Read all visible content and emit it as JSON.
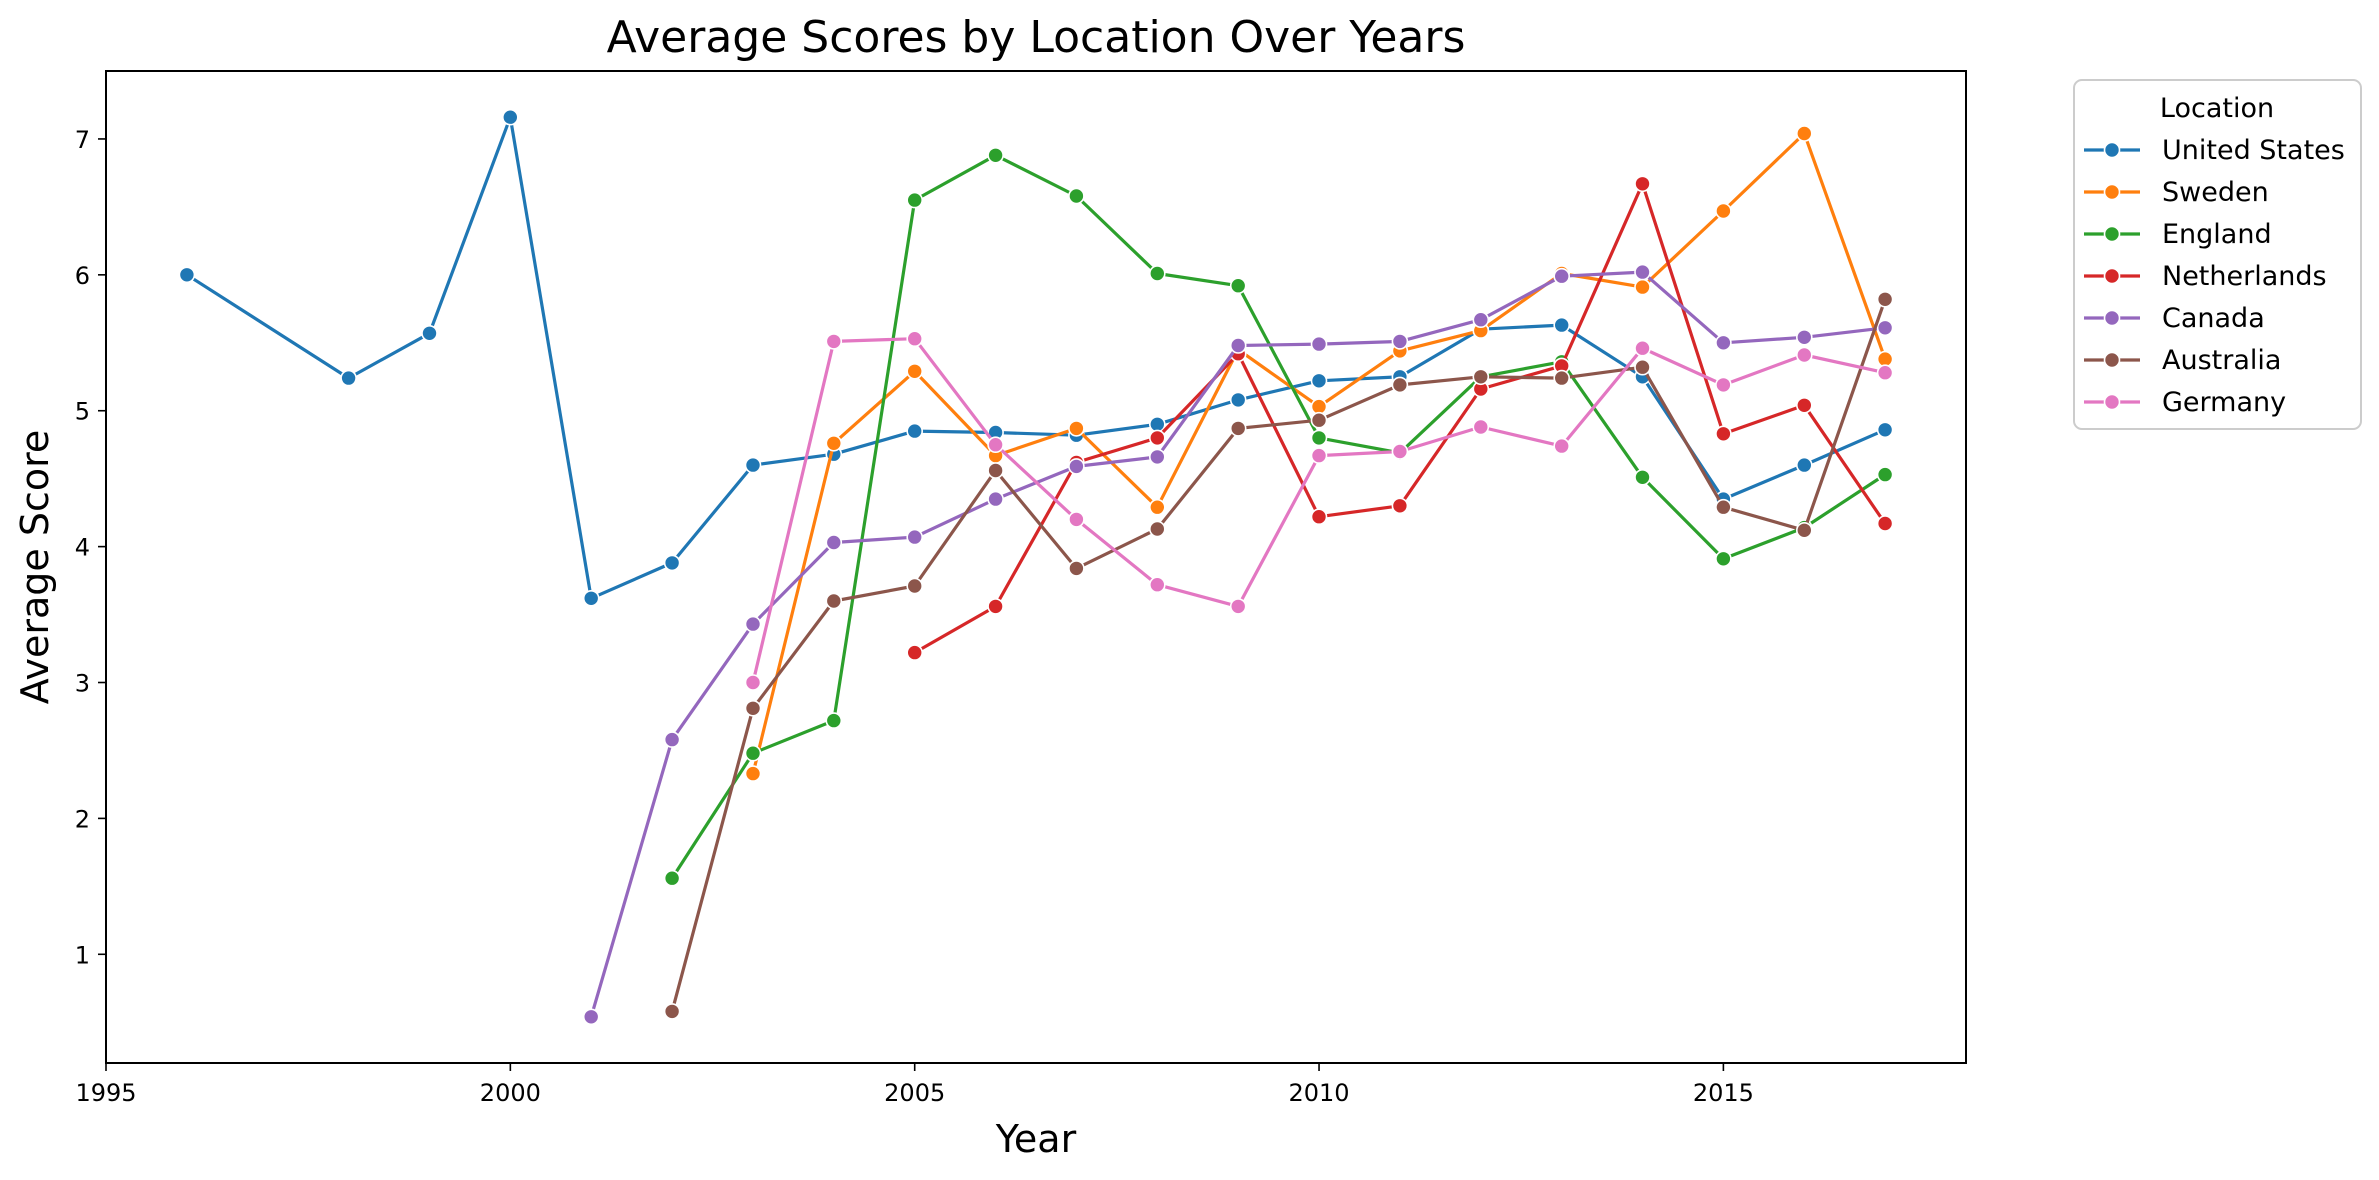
{
  "chart_data": {
    "type": "line",
    "title": "Average Scores by Location Over Years",
    "xlabel": "Year",
    "ylabel": "Average Score",
    "xlim": [
      1995,
      2018
    ],
    "ylim": [
      0.2,
      7.5
    ],
    "xticks": [
      1995,
      2000,
      2005,
      2010,
      2015
    ],
    "yticks": [
      1,
      2,
      3,
      4,
      5,
      6,
      7
    ],
    "grid": false,
    "legend": {
      "title": "Location",
      "placement": "outside-top-right"
    },
    "series": [
      {
        "name": "United States",
        "color": "#1f77b4",
        "points": [
          [
            1996,
            6.0
          ],
          [
            1998,
            5.24
          ],
          [
            1999,
            5.57
          ],
          [
            2000,
            7.16
          ],
          [
            2001,
            3.62
          ],
          [
            2002,
            3.88
          ],
          [
            2003,
            4.6
          ],
          [
            2004,
            4.68
          ],
          [
            2005,
            4.85
          ],
          [
            2006,
            4.84
          ],
          [
            2007,
            4.82
          ],
          [
            2008,
            4.9
          ],
          [
            2009,
            5.08
          ],
          [
            2010,
            5.22
          ],
          [
            2011,
            5.25
          ],
          [
            2012,
            5.6
          ],
          [
            2013,
            5.63
          ],
          [
            2014,
            5.25
          ],
          [
            2015,
            4.35
          ],
          [
            2016,
            4.6
          ],
          [
            2017,
            4.86
          ]
        ]
      },
      {
        "name": "Sweden",
        "color": "#ff7f0e",
        "points": [
          [
            2003,
            2.33
          ],
          [
            2004,
            4.76
          ],
          [
            2005,
            5.29
          ],
          [
            2006,
            4.67
          ],
          [
            2007,
            4.87
          ],
          [
            2008,
            4.29
          ],
          [
            2009,
            5.45
          ],
          [
            2010,
            5.03
          ],
          [
            2011,
            5.44
          ],
          [
            2012,
            5.59
          ],
          [
            2013,
            6.01
          ],
          [
            2014,
            5.91
          ],
          [
            2015,
            6.47
          ],
          [
            2016,
            7.04
          ],
          [
            2017,
            5.38
          ]
        ]
      },
      {
        "name": "England",
        "color": "#2ca02c",
        "points": [
          [
            2002,
            1.56
          ],
          [
            2003,
            2.48
          ],
          [
            2004,
            2.72
          ],
          [
            2005,
            6.55
          ],
          [
            2006,
            6.88
          ],
          [
            2007,
            6.58
          ],
          [
            2008,
            6.01
          ],
          [
            2009,
            5.92
          ],
          [
            2010,
            4.8
          ],
          [
            2011,
            4.69
          ],
          [
            2012,
            5.25
          ],
          [
            2013,
            5.36
          ],
          [
            2014,
            4.51
          ],
          [
            2015,
            3.91
          ],
          [
            2016,
            4.14
          ],
          [
            2017,
            4.53
          ]
        ]
      },
      {
        "name": "Netherlands",
        "color": "#d62728",
        "points": [
          [
            2005,
            3.22
          ],
          [
            2006,
            3.56
          ],
          [
            2007,
            4.62
          ],
          [
            2008,
            4.8
          ],
          [
            2009,
            5.42
          ],
          [
            2010,
            4.22
          ],
          [
            2011,
            4.3
          ],
          [
            2012,
            5.16
          ],
          [
            2013,
            5.33
          ],
          [
            2014,
            6.67
          ],
          [
            2015,
            4.83
          ],
          [
            2016,
            5.04
          ],
          [
            2017,
            4.17
          ]
        ]
      },
      {
        "name": "Canada",
        "color": "#9467bd",
        "points": [
          [
            2001,
            0.54
          ],
          [
            2002,
            2.58
          ],
          [
            2003,
            3.43
          ],
          [
            2004,
            4.03
          ],
          [
            2005,
            4.07
          ],
          [
            2006,
            4.35
          ],
          [
            2007,
            4.59
          ],
          [
            2008,
            4.66
          ],
          [
            2009,
            5.48
          ],
          [
            2010,
            5.49
          ],
          [
            2011,
            5.51
          ],
          [
            2012,
            5.67
          ],
          [
            2013,
            5.99
          ],
          [
            2014,
            6.02
          ],
          [
            2015,
            5.5
          ],
          [
            2016,
            5.54
          ],
          [
            2017,
            5.61
          ]
        ]
      },
      {
        "name": "Australia",
        "color": "#8c564b",
        "points": [
          [
            2002,
            0.58
          ],
          [
            2003,
            2.81
          ],
          [
            2004,
            3.6
          ],
          [
            2005,
            3.71
          ],
          [
            2006,
            4.56
          ],
          [
            2007,
            3.84
          ],
          [
            2008,
            4.13
          ],
          [
            2009,
            4.87
          ],
          [
            2010,
            4.93
          ],
          [
            2011,
            5.19
          ],
          [
            2012,
            5.25
          ],
          [
            2013,
            5.24
          ],
          [
            2014,
            5.32
          ],
          [
            2015,
            4.29
          ],
          [
            2016,
            4.12
          ],
          [
            2017,
            5.82
          ]
        ]
      },
      {
        "name": "Germany",
        "color": "#e377c2",
        "points": [
          [
            2003,
            3.0
          ],
          [
            2004,
            5.51
          ],
          [
            2005,
            5.53
          ],
          [
            2006,
            4.75
          ],
          [
            2007,
            4.2
          ],
          [
            2008,
            3.72
          ],
          [
            2009,
            3.56
          ],
          [
            2010,
            4.67
          ],
          [
            2011,
            4.7
          ],
          [
            2012,
            4.88
          ],
          [
            2013,
            4.74
          ],
          [
            2014,
            5.46
          ],
          [
            2015,
            5.19
          ],
          [
            2016,
            5.41
          ],
          [
            2017,
            5.28
          ]
        ]
      }
    ]
  }
}
